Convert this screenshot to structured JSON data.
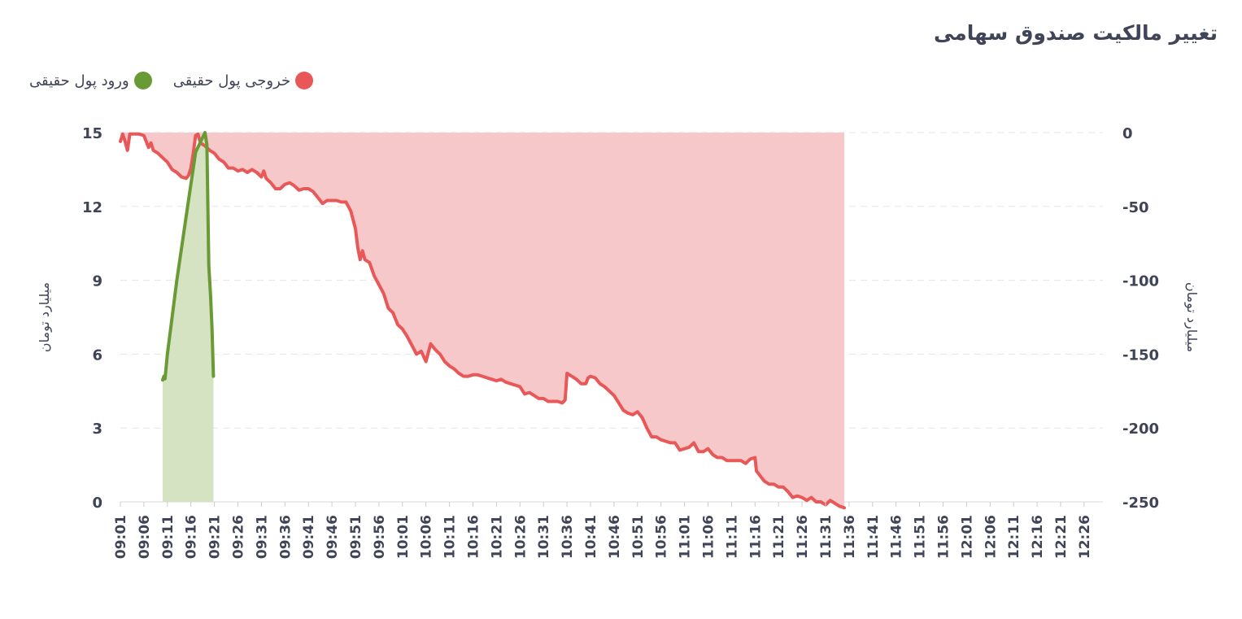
{
  "title": "تغییر مالکیت صندوق سهامی",
  "legend": {
    "inflow_label": "ورود پول حقیقی",
    "outflow_label": "خروجی پول حقیقی"
  },
  "colors": {
    "inflow_line": "#6a9a36",
    "inflow_fill": "#d5e3c3",
    "outflow_line": "#e85858",
    "outflow_fill": "#f7c8ca",
    "text": "#3f4457",
    "grid": "#e6e6e6"
  },
  "chart_data": {
    "type": "area",
    "x": [
      "09:01",
      "09:06",
      "09:11",
      "09:16",
      "09:21",
      "09:26",
      "09:31",
      "09:36",
      "09:41",
      "09:46",
      "09:51",
      "09:56",
      "10:01",
      "10:06",
      "10:11",
      "10:16",
      "10:21",
      "10:26",
      "10:31",
      "10:36",
      "10:41",
      "10:46",
      "10:51",
      "10:56",
      "11:01",
      "11:06",
      "11:11",
      "11:16",
      "11:21",
      "11:26",
      "11:31",
      "11:36",
      "11:41",
      "11:46",
      "11:51",
      "11:56",
      "12:01",
      "12:06",
      "12:11",
      "12:16",
      "12:21",
      "12:26"
    ],
    "y_left": {
      "label": "میلیارد تومان",
      "ylim": [
        0,
        15
      ],
      "ticks": [
        0,
        3,
        6,
        9,
        12,
        15
      ]
    },
    "y_right": {
      "label": "میلیارد تومان",
      "ylim": [
        -250,
        0
      ],
      "ticks": [
        0,
        -50,
        -100,
        -150,
        -200,
        -250
      ]
    },
    "grid": true,
    "legend_position": "top-left",
    "series": [
      {
        "name": "ورود پول حقیقی",
        "axis": "left",
        "points": [
          [
            9.0,
            4.95
          ],
          [
            9.25,
            5.1
          ],
          [
            9.5,
            5.0
          ],
          [
            10,
            6.0
          ],
          [
            12,
            9.0
          ],
          [
            14,
            11.6
          ],
          [
            16,
            14.2
          ],
          [
            18.0,
            15.0
          ],
          [
            18.4,
            14.5
          ],
          [
            18.8,
            9.6
          ],
          [
            19.2,
            8.3
          ],
          [
            19.5,
            7.0
          ],
          [
            19.8,
            5.1
          ]
        ]
      },
      {
        "name": "خروجی پول حقیقی",
        "axis": "right",
        "points": [
          [
            0.0,
            -6
          ],
          [
            0.5,
            -1
          ],
          [
            1.0,
            -6
          ],
          [
            1.5,
            -12
          ],
          [
            2.0,
            -1
          ],
          [
            4.0,
            -1
          ],
          [
            5.0,
            -2
          ],
          [
            6.0,
            -10
          ],
          [
            6.5,
            -7
          ],
          [
            7.0,
            -12
          ],
          [
            8.0,
            -14
          ],
          [
            9.0,
            -17
          ],
          [
            10.0,
            -20
          ],
          [
            11.0,
            -25
          ],
          [
            12.0,
            -27
          ],
          [
            13.0,
            -30
          ],
          [
            14.0,
            -31
          ],
          [
            14.5,
            -29
          ],
          [
            15.0,
            -24
          ],
          [
            15.5,
            -14
          ],
          [
            16.0,
            -2
          ],
          [
            16.5,
            -1
          ],
          [
            17.0,
            -7
          ],
          [
            18.0,
            -9
          ],
          [
            19.0,
            -12
          ],
          [
            20.0,
            -14
          ],
          [
            21.0,
            -18
          ],
          [
            22.0,
            -20
          ],
          [
            23.0,
            -24
          ],
          [
            24.0,
            -24
          ],
          [
            25.0,
            -26
          ],
          [
            26.0,
            -25
          ],
          [
            27.0,
            -27
          ],
          [
            28.0,
            -25
          ],
          [
            29.0,
            -27
          ],
          [
            30.0,
            -30
          ],
          [
            30.5,
            -26
          ],
          [
            31.0,
            -31
          ],
          [
            32.0,
            -34
          ],
          [
            33.0,
            -38
          ],
          [
            34.0,
            -38
          ],
          [
            35.0,
            -35
          ],
          [
            36.0,
            -34
          ],
          [
            37.0,
            -36
          ],
          [
            38.0,
            -39
          ],
          [
            39.0,
            -38
          ],
          [
            40.0,
            -38
          ],
          [
            41.0,
            -40
          ],
          [
            42.0,
            -44
          ],
          [
            43.0,
            -48
          ],
          [
            44.0,
            -46
          ],
          [
            45.0,
            -46
          ],
          [
            46.0,
            -46
          ],
          [
            47.0,
            -47
          ],
          [
            48.0,
            -47
          ],
          [
            49.0,
            -53
          ],
          [
            50.0,
            -65
          ],
          [
            50.5,
            -78
          ],
          [
            51.0,
            -86
          ],
          [
            51.5,
            -80
          ],
          [
            52.0,
            -86
          ],
          [
            53.0,
            -88
          ],
          [
            54.0,
            -97
          ],
          [
            55.0,
            -103
          ],
          [
            56.0,
            -109
          ],
          [
            57.0,
            -119
          ],
          [
            58.0,
            -122
          ],
          [
            59.0,
            -130
          ],
          [
            60.0,
            -133
          ],
          [
            61.0,
            -138
          ],
          [
            62.0,
            -144
          ],
          [
            63.0,
            -150
          ],
          [
            64.0,
            -148
          ],
          [
            65.0,
            -155
          ],
          [
            66.0,
            -143
          ],
          [
            67.0,
            -147
          ],
          [
            68.0,
            -150
          ],
          [
            69.0,
            -155
          ],
          [
            70.0,
            -158
          ],
          [
            71.0,
            -160
          ],
          [
            72.0,
            -163
          ],
          [
            73.0,
            -165
          ],
          [
            74.0,
            -165
          ],
          [
            75.0,
            -164
          ],
          [
            76.0,
            -164
          ],
          [
            77.0,
            -165
          ],
          [
            78.0,
            -166
          ],
          [
            79.0,
            -167
          ],
          [
            80.0,
            -168
          ],
          [
            81.0,
            -167
          ],
          [
            82.0,
            -169
          ],
          [
            83.0,
            -170
          ],
          [
            84.0,
            -171
          ],
          [
            85.0,
            -172
          ],
          [
            86.0,
            -177
          ],
          [
            87.0,
            -176
          ],
          [
            88.0,
            -178
          ],
          [
            89.0,
            -180
          ],
          [
            90.0,
            -180
          ],
          [
            91.0,
            -182
          ],
          [
            92.0,
            -182
          ],
          [
            93.0,
            -182
          ],
          [
            94.0,
            -183
          ],
          [
            94.6,
            -181
          ],
          [
            95.0,
            -163
          ],
          [
            96.0,
            -165
          ],
          [
            97.0,
            -167
          ],
          [
            98.0,
            -170
          ],
          [
            99.0,
            -170
          ],
          [
            99.5,
            -166
          ],
          [
            100.0,
            -165
          ],
          [
            101.0,
            -166
          ],
          [
            102.0,
            -170
          ],
          [
            103.0,
            -172
          ],
          [
            104.0,
            -175
          ],
          [
            105.0,
            -178
          ],
          [
            106.0,
            -183
          ],
          [
            107.0,
            -188
          ],
          [
            108.0,
            -190
          ],
          [
            109.0,
            -191
          ],
          [
            110.0,
            -189
          ],
          [
            111.0,
            -193
          ],
          [
            112.0,
            -200
          ],
          [
            113.0,
            -206
          ],
          [
            114.0,
            -206
          ],
          [
            115.0,
            -208
          ],
          [
            116.0,
            -209
          ],
          [
            117.0,
            -210
          ],
          [
            118.0,
            -210
          ],
          [
            119.0,
            -215
          ],
          [
            120.0,
            -214
          ],
          [
            121.0,
            -213
          ],
          [
            122.0,
            -210
          ],
          [
            123.0,
            -216
          ],
          [
            124.0,
            -216
          ],
          [
            125.0,
            -214
          ],
          [
            126.0,
            -218
          ],
          [
            127.0,
            -220
          ],
          [
            128.0,
            -220
          ],
          [
            129.0,
            -222
          ],
          [
            130.0,
            -222
          ],
          [
            131.0,
            -222
          ],
          [
            132.0,
            -222
          ],
          [
            133.0,
            -224
          ],
          [
            134.0,
            -221
          ],
          [
            135.0,
            -220
          ],
          [
            135.3,
            -229
          ],
          [
            136.0,
            -232
          ],
          [
            137.0,
            -236
          ],
          [
            138.0,
            -238
          ],
          [
            139.0,
            -238
          ],
          [
            140.0,
            -240
          ],
          [
            141.0,
            -240
          ],
          [
            142.0,
            -243
          ],
          [
            143.0,
            -247
          ],
          [
            144.0,
            -246
          ],
          [
            145.0,
            -247
          ],
          [
            146.0,
            -249
          ],
          [
            147.0,
            -247
          ],
          [
            148.0,
            -250
          ],
          [
            149.0,
            -250
          ],
          [
            150.0,
            -252
          ],
          [
            151.0,
            -249
          ],
          [
            152.0,
            -251
          ],
          [
            153.0,
            -253
          ],
          [
            154.0,
            -254
          ]
        ]
      }
    ]
  }
}
